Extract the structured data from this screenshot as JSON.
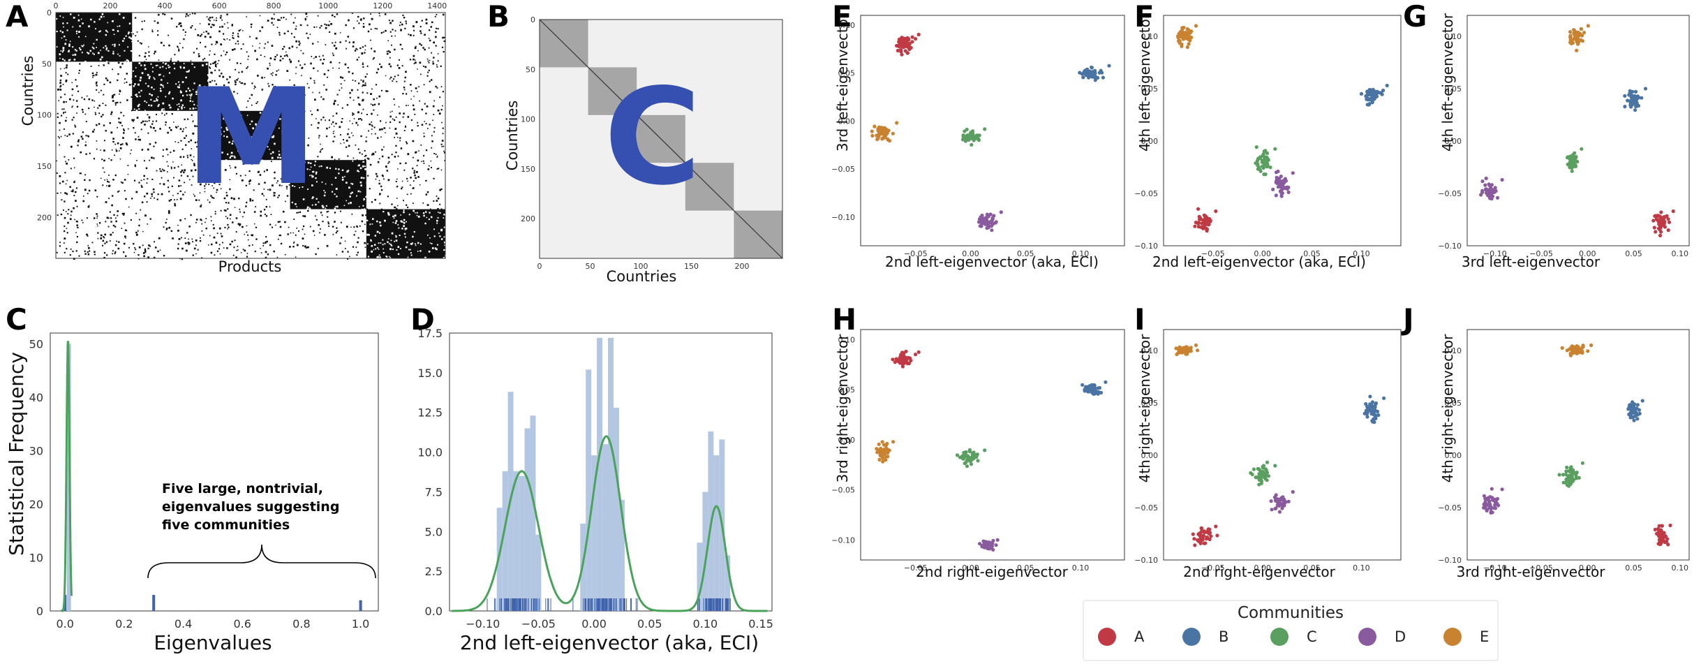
{
  "colors": {
    "A": "#c03a45",
    "B": "#4a74a3",
    "C": "#5a9f60",
    "D": "#8a5a9e",
    "E": "#c98230",
    "hist": "#b0c4e0",
    "rug": "#3f64ad",
    "kde": "#4aa35a",
    "big_letter": "#3550b0"
  },
  "panels": {
    "A": {
      "label": "A",
      "xlabel": "Products",
      "ylabel": "Countries",
      "xticks": [
        "0",
        "200",
        "400",
        "600",
        "800",
        "1000",
        "1200",
        "1400"
      ],
      "yticks": [
        "0",
        "50",
        "100",
        "150",
        "200"
      ],
      "overlay": "M"
    },
    "B": {
      "label": "B",
      "xlabel": "Countries",
      "ylabel": "Countries",
      "xticks": [
        "0",
        "50",
        "100",
        "150",
        "200"
      ],
      "yticks": [
        "0",
        "50",
        "100",
        "150",
        "200"
      ],
      "overlay": "C"
    },
    "C": {
      "label": "C",
      "xlabel": "Eigenvalues",
      "ylabel": "Statistical Frequency",
      "xticks": [
        "0.0",
        "0.2",
        "0.4",
        "0.6",
        "0.8",
        "1.0"
      ],
      "yticks": [
        "0",
        "10",
        "20",
        "30",
        "40",
        "50"
      ],
      "annotation": [
        "Five large, nontrivial,",
        "eigenvalues suggesting",
        "five communities"
      ]
    },
    "D": {
      "label": "D",
      "xlabel": "2nd left-eigenvector (aka, ECI)",
      "ylabel": "",
      "xticks": [
        "−0.10",
        "−0.05",
        "0.00",
        "0.05",
        "0.10",
        "0.15"
      ],
      "yticks": [
        "0.0",
        "2.5",
        "5.0",
        "7.5",
        "10.0",
        "12.5",
        "15.0",
        "17.5"
      ]
    },
    "E": {
      "label": "E",
      "xlabel": "2nd left-eigenvector (aka, ECI)",
      "ylabel": "3rd left-eigenvector",
      "xticks": [
        "−0.05",
        "0.00",
        "0.05",
        "0.10"
      ],
      "yticks": [
        "0.10",
        "0.05",
        "0.00",
        "−0.05",
        "−0.10"
      ]
    },
    "F": {
      "label": "F",
      "xlabel": "2nd left-eigenvector (aka, ECI)",
      "ylabel": "4th left-eigenvector",
      "xticks": [
        "−0.05",
        "0.00",
        "0.05",
        "0.10"
      ],
      "yticks": [
        "0.10",
        "0.05",
        "0.00",
        "−0.05",
        "−0.10"
      ]
    },
    "G": {
      "label": "G",
      "xlabel": "3rd left-eigenvector",
      "ylabel": "4th left-eigenvector",
      "xticks": [
        "−0.10",
        "−0.05",
        "0.00",
        "0.05",
        "0.10"
      ],
      "yticks": [
        "0.10",
        "0.05",
        "0.00",
        "−0.05",
        "−0.10"
      ]
    },
    "H": {
      "label": "H",
      "xlabel": "2nd right-eigenvector",
      "ylabel": "3rd right-eigenvector",
      "xticks": [
        "−0.05",
        "0.00",
        "0.05",
        "0.10"
      ],
      "yticks": [
        "0.10",
        "0.05",
        "0.00",
        "−0.05",
        "−0.10"
      ]
    },
    "I": {
      "label": "I",
      "xlabel": "2nd right-eigenvector",
      "ylabel": "4th right-eigenvector",
      "xticks": [
        "−0.05",
        "0.00",
        "0.05",
        "0.10"
      ],
      "yticks": [
        "0.10",
        "0.05",
        "0.00",
        "−0.05",
        "−0.10"
      ]
    },
    "J": {
      "label": "J",
      "xlabel": "3rd right-eigenvector",
      "ylabel": "4th right-eigenvector",
      "xticks": [
        "−0.10",
        "−0.05",
        "0.00",
        "0.05",
        "0.10"
      ],
      "yticks": [
        "0.10",
        "0.05",
        "0.00",
        "−0.05",
        "−0.10"
      ]
    }
  },
  "legend": {
    "title": "Communities",
    "items": [
      "A",
      "B",
      "C",
      "D",
      "E"
    ]
  },
  "chart_data": [
    {
      "panel": "A",
      "type": "heatmap",
      "title": "",
      "xlabel": "Products",
      "ylabel": "Countries",
      "xlim": [
        0,
        1430
      ],
      "ylim": [
        0,
        240
      ],
      "blocks": [
        {
          "rows": [
            0,
            48
          ],
          "cols": [
            0,
            280
          ]
        },
        {
          "rows": [
            48,
            96
          ],
          "cols": [
            280,
            560
          ]
        },
        {
          "rows": [
            96,
            144
          ],
          "cols": [
            560,
            860
          ]
        },
        {
          "rows": [
            144,
            192
          ],
          "cols": [
            860,
            1140
          ]
        },
        {
          "rows": [
            192,
            240
          ],
          "cols": [
            1140,
            1430
          ]
        }
      ]
    },
    {
      "panel": "B",
      "type": "heatmap",
      "title": "",
      "xlabel": "Countries",
      "ylabel": "Countries",
      "xlim": [
        0,
        240
      ],
      "ylim": [
        0,
        240
      ],
      "blocks": [
        {
          "rows": [
            0,
            48
          ],
          "cols": [
            0,
            48
          ]
        },
        {
          "rows": [
            48,
            96
          ],
          "cols": [
            48,
            96
          ]
        },
        {
          "rows": [
            96,
            144
          ],
          "cols": [
            96,
            144
          ]
        },
        {
          "rows": [
            144,
            192
          ],
          "cols": [
            144,
            192
          ]
        },
        {
          "rows": [
            192,
            240
          ],
          "cols": [
            192,
            240
          ]
        }
      ]
    },
    {
      "panel": "C",
      "type": "bar",
      "title": "",
      "xlabel": "Eigenvalues",
      "ylabel": "Statistical Frequency",
      "xlim": [
        -0.05,
        1.06
      ],
      "ylim": [
        0,
        52
      ],
      "bars": [
        {
          "x": 0.0,
          "value": 3
        },
        {
          "x": 0.013,
          "value": 50
        },
        {
          "x": 0.3,
          "value": 3
        },
        {
          "x": 1.0,
          "value": 2
        }
      ],
      "kde": {
        "peak_x": 0.01,
        "peak_y": 50.5,
        "sd": 0.005
      }
    },
    {
      "panel": "D",
      "type": "bar",
      "title": "",
      "xlabel": "2nd left-eigenvector (aka, ECI)",
      "ylabel": "",
      "xlim": [
        -0.13,
        0.16
      ],
      "ylim": [
        0,
        17.5
      ],
      "bars": [
        {
          "x": -0.085,
          "value": 6.5
        },
        {
          "x": -0.08,
          "value": 8.8
        },
        {
          "x": -0.075,
          "value": 13.8
        },
        {
          "x": -0.07,
          "value": 8.8
        },
        {
          "x": -0.065,
          "value": 8.5
        },
        {
          "x": -0.06,
          "value": 11.5
        },
        {
          "x": -0.055,
          "value": 12.3
        },
        {
          "x": -0.05,
          "value": 4.8
        },
        {
          "x": -0.01,
          "value": 5.5
        },
        {
          "x": -0.005,
          "value": 15.2
        },
        {
          "x": 0.0,
          "value": 9.8
        },
        {
          "x": 0.005,
          "value": 17.2
        },
        {
          "x": 0.01,
          "value": 10.5
        },
        {
          "x": 0.015,
          "value": 17.2
        },
        {
          "x": 0.02,
          "value": 12.8
        },
        {
          "x": 0.025,
          "value": 7.0
        },
        {
          "x": 0.095,
          "value": 4.3
        },
        {
          "x": 0.1,
          "value": 7.5
        },
        {
          "x": 0.105,
          "value": 11.3
        },
        {
          "x": 0.11,
          "value": 9.8
        },
        {
          "x": 0.115,
          "value": 10.8
        },
        {
          "x": 0.12,
          "value": 3.5
        }
      ],
      "kde": [
        {
          "mu": -0.065,
          "sd": 0.015,
          "amp": 8.8
        },
        {
          "mu": 0.011,
          "sd": 0.013,
          "amp": 11.0
        },
        {
          "mu": 0.11,
          "sd": 0.008,
          "amp": 6.6
        }
      ]
    },
    {
      "panel": "E",
      "type": "scatter",
      "xlabel": "2nd left-eigenvector (aka, ECI)",
      "ylabel": "3rd left-eigenvector",
      "xlim": [
        -0.1,
        0.14
      ],
      "ylim": [
        -0.13,
        0.11
      ],
      "series": [
        {
          "name": "A",
          "center": [
            -0.06,
            0.08
          ],
          "spread": [
            0.004,
            0.004
          ]
        },
        {
          "name": "B",
          "center": [
            0.11,
            0.05
          ],
          "spread": [
            0.005,
            0.003
          ]
        },
        {
          "name": "C",
          "center": [
            0.0,
            -0.016
          ],
          "spread": [
            0.004,
            0.003
          ]
        },
        {
          "name": "D",
          "center": [
            0.015,
            -0.105
          ],
          "spread": [
            0.004,
            0.004
          ]
        },
        {
          "name": "E",
          "center": [
            -0.08,
            -0.012
          ],
          "spread": [
            0.004,
            0.004
          ]
        }
      ]
    },
    {
      "panel": "F",
      "type": "scatter",
      "xlabel": "2nd left-eigenvector (aka, ECI)",
      "ylabel": "4th left-eigenvector",
      "xlim": [
        -0.1,
        0.14
      ],
      "ylim": [
        -0.1,
        0.12
      ],
      "series": [
        {
          "name": "A",
          "center": [
            -0.06,
            -0.077
          ],
          "spread": [
            0.004,
            0.004
          ]
        },
        {
          "name": "B",
          "center": [
            0.11,
            0.043
          ],
          "spread": [
            0.005,
            0.004
          ]
        },
        {
          "name": "C",
          "center": [
            0.0,
            -0.02
          ],
          "spread": [
            0.004,
            0.005
          ]
        },
        {
          "name": "D",
          "center": [
            0.018,
            -0.043
          ],
          "spread": [
            0.004,
            0.005
          ]
        },
        {
          "name": "E",
          "center": [
            -0.08,
            0.1
          ],
          "spread": [
            0.004,
            0.004
          ]
        }
      ]
    },
    {
      "panel": "G",
      "type": "scatter",
      "xlabel": "3rd left-eigenvector",
      "ylabel": "4th left-eigenvector",
      "xlim": [
        -0.13,
        0.11
      ],
      "ylim": [
        -0.1,
        0.12
      ],
      "series": [
        {
          "name": "A",
          "center": [
            0.08,
            -0.077
          ],
          "spread": [
            0.004,
            0.004
          ]
        },
        {
          "name": "B",
          "center": [
            0.05,
            0.04
          ],
          "spread": [
            0.004,
            0.004
          ]
        },
        {
          "name": "C",
          "center": [
            -0.016,
            -0.02
          ],
          "spread": [
            0.003,
            0.005
          ]
        },
        {
          "name": "D",
          "center": [
            -0.105,
            -0.047
          ],
          "spread": [
            0.004,
            0.004
          ]
        },
        {
          "name": "E",
          "center": [
            -0.012,
            0.1
          ],
          "spread": [
            0.004,
            0.004
          ]
        }
      ]
    },
    {
      "panel": "H",
      "type": "scatter",
      "xlabel": "2nd right-eigenvector",
      "ylabel": "3rd right-eigenvector",
      "xlim": [
        -0.1,
        0.14
      ],
      "ylim": [
        -0.12,
        0.11
      ],
      "series": [
        {
          "name": "A",
          "center": [
            -0.06,
            0.08
          ],
          "spread": [
            0.004,
            0.003
          ]
        },
        {
          "name": "B",
          "center": [
            0.11,
            0.05
          ],
          "spread": [
            0.004,
            0.003
          ]
        },
        {
          "name": "C",
          "center": [
            0.0,
            -0.018
          ],
          "spread": [
            0.004,
            0.003
          ]
        },
        {
          "name": "D",
          "center": [
            0.015,
            -0.105
          ],
          "spread": [
            0.003,
            0.002
          ]
        },
        {
          "name": "E",
          "center": [
            -0.08,
            -0.012
          ],
          "spread": [
            0.003,
            0.004
          ]
        }
      ]
    },
    {
      "panel": "I",
      "type": "scatter",
      "xlabel": "2nd right-eigenvector",
      "ylabel": "4th right-eigenvector",
      "xlim": [
        -0.1,
        0.14
      ],
      "ylim": [
        -0.1,
        0.12
      ],
      "series": [
        {
          "name": "A",
          "center": [
            -0.06,
            -0.078
          ],
          "spread": [
            0.004,
            0.004
          ]
        },
        {
          "name": "B",
          "center": [
            0.11,
            0.042
          ],
          "spread": [
            0.004,
            0.005
          ]
        },
        {
          "name": "C",
          "center": [
            0.0,
            -0.02
          ],
          "spread": [
            0.004,
            0.004
          ]
        },
        {
          "name": "D",
          "center": [
            0.018,
            -0.045
          ],
          "spread": [
            0.004,
            0.004
          ]
        },
        {
          "name": "E",
          "center": [
            -0.08,
            0.1
          ],
          "spread": [
            0.004,
            0.002
          ]
        }
      ]
    },
    {
      "panel": "J",
      "type": "scatter",
      "xlabel": "3rd right-eigenvector",
      "ylabel": "4th right-eigenvector",
      "xlim": [
        -0.13,
        0.11
      ],
      "ylim": [
        -0.1,
        0.12
      ],
      "series": [
        {
          "name": "A",
          "center": [
            0.08,
            -0.077
          ],
          "spread": [
            0.003,
            0.004
          ]
        },
        {
          "name": "B",
          "center": [
            0.05,
            0.042
          ],
          "spread": [
            0.003,
            0.004
          ]
        },
        {
          "name": "C",
          "center": [
            -0.018,
            -0.02
          ],
          "spread": [
            0.004,
            0.005
          ]
        },
        {
          "name": "D",
          "center": [
            -0.105,
            -0.045
          ],
          "spread": [
            0.004,
            0.005
          ]
        },
        {
          "name": "E",
          "center": [
            -0.012,
            0.1
          ],
          "spread": [
            0.005,
            0.002
          ]
        }
      ]
    }
  ]
}
